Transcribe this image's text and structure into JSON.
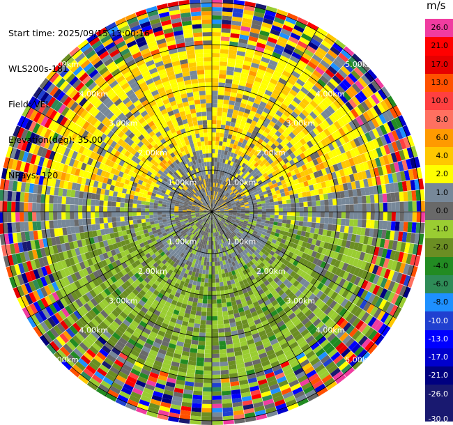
{
  "info": {
    "start_time": "Start time: 2025/09/15 13:00:16",
    "instrument": "WLS200s-181",
    "field": "Field: VEL",
    "elevation": "Elevation(deg): 35.00",
    "nrays": "NRays: 120"
  },
  "colorbar": {
    "unit": "m/s",
    "entries": [
      {
        "label": "26.0",
        "color": "#f03ca0"
      },
      {
        "label": "21.0",
        "color": "#ff0000"
      },
      {
        "label": "17.0",
        "color": "#e60000"
      },
      {
        "label": "13.0",
        "color": "#ff5000"
      },
      {
        "label": "10.0",
        "color": "#ff4040"
      },
      {
        "label": "8.0",
        "color": "#ff7060"
      },
      {
        "label": "6.0",
        "color": "#ff9a00"
      },
      {
        "label": "4.0",
        "color": "#ffc800"
      },
      {
        "label": "2.0",
        "color": "#ffff00"
      },
      {
        "label": "1.0",
        "color": "#778899"
      },
      {
        "label": "0.0",
        "color": "#696969"
      },
      {
        "label": "-1.0",
        "color": "#9acd32"
      },
      {
        "label": "-2.0",
        "color": "#6b8e23"
      },
      {
        "label": "-4.0",
        "color": "#228b22"
      },
      {
        "label": "-6.0",
        "color": "#2e8b57"
      },
      {
        "label": "-8.0",
        "color": "#1e90ff"
      },
      {
        "label": "-10.0",
        "color": "#2040d0"
      },
      {
        "label": "-13.0",
        "color": "#0000ff"
      },
      {
        "label": "-17.0",
        "color": "#0000cd"
      },
      {
        "label": "-21.0",
        "color": "#000080"
      },
      {
        "label": "-26.0",
        "color": "#191970"
      }
    ],
    "bottom_label": "-30.0"
  },
  "chart_data": {
    "type": "heatmap",
    "projection": "polar PPI",
    "field": "VEL",
    "units": "m/s",
    "elevation_deg": 35.0,
    "n_rays": 120,
    "range_rings_km": [
      1.0,
      2.0,
      3.0,
      4.0,
      5.0
    ],
    "range_ring_labels": [
      "1.00km",
      "2.00km",
      "3.00km",
      "4.00km",
      "5.00km"
    ],
    "max_range_km": 5.1,
    "color_scale_min": -30.0,
    "color_scale_max": 30.0,
    "pattern": {
      "north_sector": "positive (yellow/gold, 2-6 m/s)",
      "south_sector": "negative (olive/green, -1 to -2 m/s)",
      "inner_ring": "near-zero (gray)",
      "outer_ring": "noisy (mixed colors)"
    }
  }
}
